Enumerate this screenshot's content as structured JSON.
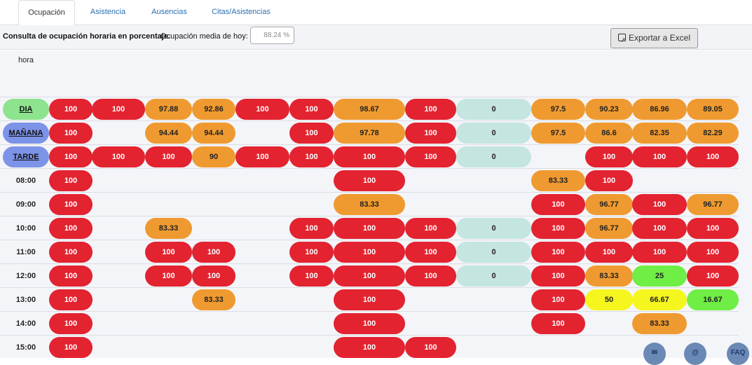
{
  "tabs": [
    "Ocupación",
    "Asistencia",
    "Ausencias",
    "Citas/Asistencias"
  ],
  "toolbar": {
    "label": "Consulta de ocupación horaria en porcentaje.",
    "avg_label": "Ocupación media de hoy:",
    "avg_value": "88.24 %",
    "export_label": "Exportar a Excel"
  },
  "table": {
    "hora_label": "hora",
    "rows": [
      {
        "label": "DIA",
        "cells": [
          "100",
          "100",
          "97.88",
          "92.86",
          "100",
          "100",
          "98.67",
          "100",
          "0",
          "97.5",
          "90.23",
          "86.96",
          "89.05"
        ]
      },
      {
        "label": "MAÑANA",
        "cells": [
          "100",
          "",
          "94.44",
          "94.44",
          "",
          "100",
          "97.78",
          "100",
          "0",
          "97.5",
          "86.6",
          "82.35",
          "82.29"
        ]
      },
      {
        "label": "TARDE",
        "cells": [
          "100",
          "100",
          "100",
          "90",
          "100",
          "100",
          "100",
          "100",
          "0",
          "",
          "100",
          "100",
          "100"
        ]
      },
      {
        "label": "08:00",
        "cells": [
          "100",
          "",
          "",
          "",
          "",
          "",
          "100",
          "",
          "",
          "83.33",
          "100",
          "",
          ""
        ]
      },
      {
        "label": "09:00",
        "cells": [
          "100",
          "",
          "",
          "",
          "",
          "",
          "83.33",
          "",
          "",
          "100",
          "96.77",
          "100",
          "96.77"
        ]
      },
      {
        "label": "10:00",
        "cells": [
          "100",
          "",
          "83.33",
          "",
          "",
          "100",
          "100",
          "100",
          "0",
          "100",
          "96.77",
          "100",
          "100"
        ]
      },
      {
        "label": "11:00",
        "cells": [
          "100",
          "",
          "100",
          "100",
          "",
          "100",
          "100",
          "100",
          "0",
          "100",
          "100",
          "100",
          "100"
        ]
      },
      {
        "label": "12:00",
        "cells": [
          "100",
          "",
          "100",
          "100",
          "",
          "100",
          "100",
          "100",
          "0",
          "100",
          "83.33",
          "25",
          "100"
        ]
      },
      {
        "label": "13:00",
        "cells": [
          "100",
          "",
          "",
          "83.33",
          "",
          "",
          "100",
          "",
          "",
          "100",
          "50",
          "66.67",
          "16.67"
        ]
      },
      {
        "label": "14:00",
        "cells": [
          "100",
          "",
          "",
          "",
          "",
          "",
          "100",
          "",
          "",
          "100",
          "",
          "83.33",
          ""
        ]
      },
      {
        "label": "15:00",
        "cells": [
          "100",
          "",
          "",
          "",
          "",
          "",
          "100",
          "100",
          "",
          "",
          "",
          "",
          ""
        ]
      }
    ]
  },
  "footer_icons": [
    "mail-icon",
    "at-icon",
    "faq-icon"
  ],
  "faq_label": "FAQ"
}
